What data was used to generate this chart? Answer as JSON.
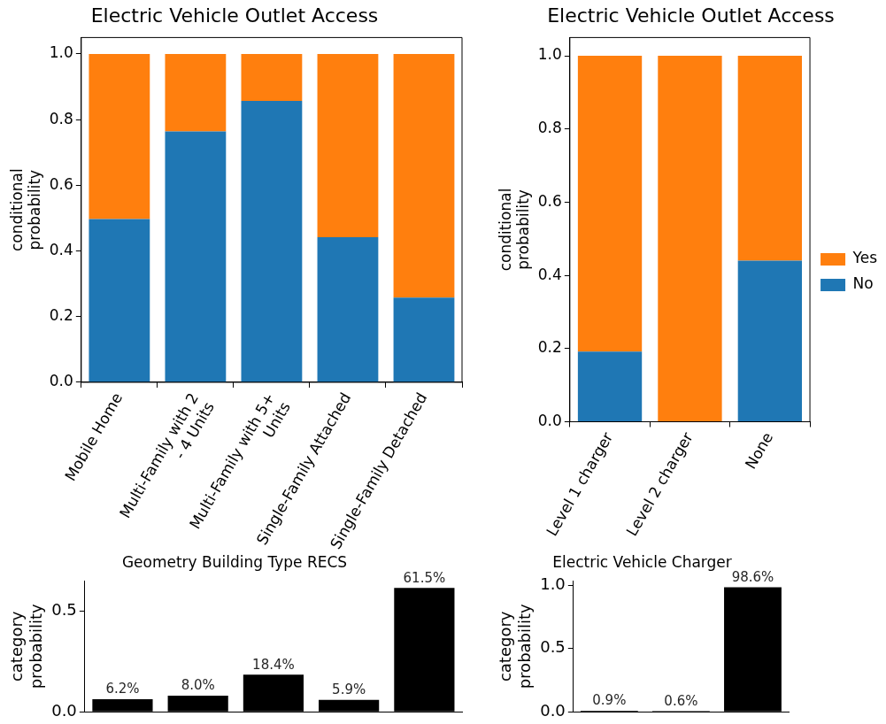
{
  "chart_data": [
    {
      "type": "bar",
      "title": "Electric Vehicle Outlet Access",
      "ylabel": "conditional\nprobability",
      "categories": [
        "Mobile Home",
        "Multi-Family with 2\n- 4 Units",
        "Multi-Family with 5+\nUnits",
        "Single-Family Attached",
        "Single-Family Detached"
      ],
      "stacked": true,
      "series": [
        {
          "color": "#1f77b4",
          "values": [
            0.497,
            0.764,
            0.857,
            0.442,
            0.258
          ]
        },
        {
          "color": "#ff7f0e",
          "values": [
            0.503,
            0.236,
            0.143,
            0.558,
            0.742
          ]
        }
      ],
      "ylim": [
        0,
        1.05
      ],
      "yticks": [
        {
          "value": 0,
          "label": "0.0"
        },
        {
          "value": 0.2,
          "label": "0.2"
        },
        {
          "value": 0.4,
          "label": "0.4"
        },
        {
          "value": 0.6,
          "label": "0.6"
        },
        {
          "value": 0.8,
          "label": "0.8"
        },
        {
          "value": 1,
          "label": "1.0"
        }
      ],
      "grid": false,
      "legend": false
    },
    {
      "type": "bar",
      "title": "Electric Vehicle Outlet Access",
      "ylabel": "conditional\nprobability",
      "categories": [
        "Level 1 charger",
        "Level 2 charger",
        "None"
      ],
      "stacked": true,
      "series": [
        {
          "name": "No",
          "color": "#1f77b4",
          "values": [
            0.192,
            0,
            0.44
          ]
        },
        {
          "name": "Yes",
          "color": "#ff7f0e",
          "values": [
            0.808,
            1,
            0.56
          ]
        }
      ],
      "ylim": [
        0,
        1.05
      ],
      "yticks": [
        {
          "value": 0,
          "label": "0.0"
        },
        {
          "value": 0.2,
          "label": "0.2"
        },
        {
          "value": 0.4,
          "label": "0.4"
        },
        {
          "value": 0.6,
          "label": "0.6"
        },
        {
          "value": 0.8,
          "label": "0.8"
        },
        {
          "value": 1,
          "label": "1.0"
        }
      ],
      "grid": false,
      "legend": "right"
    },
    {
      "type": "bar",
      "title": "Geometry Building Type RECS",
      "ylabel": "category\nprobability",
      "categories": [
        null,
        null,
        null,
        null,
        null
      ],
      "series": [
        {
          "color": "#000000",
          "values": [
            0.062,
            0.08,
            0.184,
            0.059,
            0.615
          ],
          "value_labels": [
            "6.2%",
            "8.0%",
            "18.4%",
            "5.9%",
            "61.5%"
          ]
        }
      ],
      "ylim": [
        0,
        0.65
      ],
      "yticks": [
        {
          "value": 0,
          "label": "0.0"
        },
        {
          "value": 0.5,
          "label": "0.5"
        }
      ],
      "tick_labels": "y",
      "grid": false,
      "legend": false
    },
    {
      "type": "bar",
      "title": "Electric Vehicle Charger",
      "ylabel": "category\nprobability",
      "categories": [
        null,
        null,
        null
      ],
      "series": [
        {
          "color": "#000000",
          "values": [
            0.009,
            0.006,
            0.986
          ],
          "value_labels": [
            "0.9%",
            "0.6%",
            "98.6%"
          ]
        }
      ],
      "ylim": [
        0,
        1.035
      ],
      "yticks": [
        {
          "value": 0,
          "label": "0.0"
        },
        {
          "value": 0.5,
          "label": "0.5"
        },
        {
          "value": 1,
          "label": "1.0"
        }
      ],
      "tick_labels": "y",
      "grid": false,
      "legend": false
    }
  ]
}
